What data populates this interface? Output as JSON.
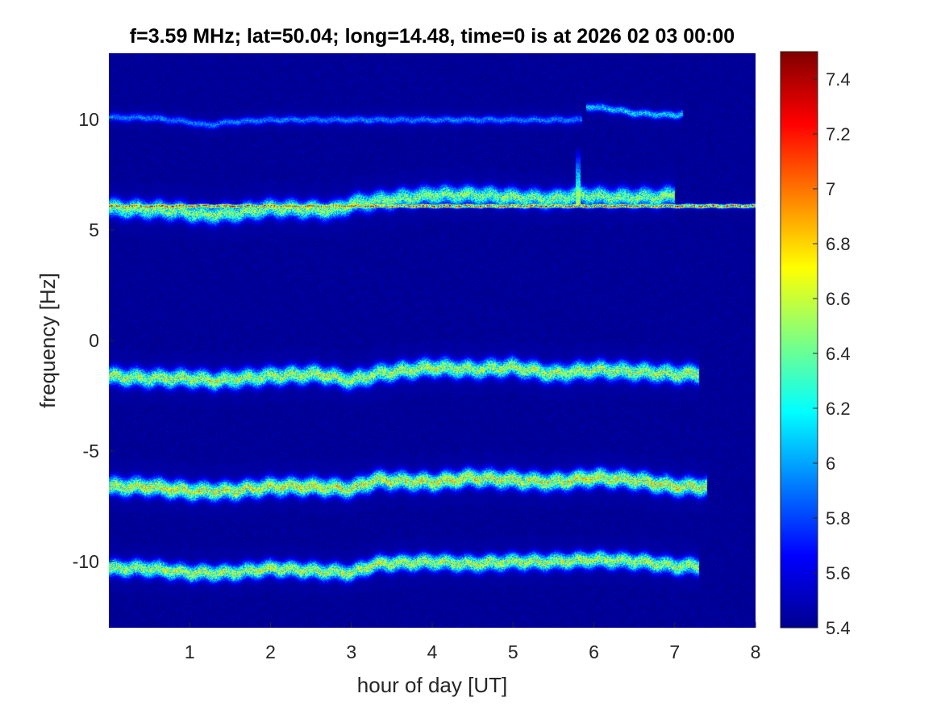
{
  "chart_data": {
    "type": "heatmap",
    "title": "f=3.59 MHz;  lat=50.04; long=14.48, time=0 is at 2026 02 03 00:00",
    "xlabel": "hour of day [UT]",
    "ylabel": "frequency [Hz]",
    "xlim": [
      0,
      8
    ],
    "ylim": [
      -13,
      13
    ],
    "xticks": [
      1,
      2,
      3,
      4,
      5,
      6,
      7,
      8
    ],
    "yticks": [
      10,
      5,
      0,
      -5,
      -10
    ],
    "colorbar": {
      "colormap": "jet",
      "range": [
        5.4,
        7.5
      ],
      "ticks": [
        7.4,
        7.2,
        7,
        6.8,
        6.6,
        6.4,
        6.2,
        6,
        5.8,
        5.6,
        5.4
      ]
    },
    "background_value": 5.45,
    "traces": [
      {
        "center": [
          [
            0,
            10.1
          ],
          [
            0.5,
            10.1
          ],
          [
            1,
            9.9
          ],
          [
            1.2,
            9.75
          ],
          [
            1.5,
            9.9
          ],
          [
            2,
            10.0
          ],
          [
            3,
            10.0
          ],
          [
            4,
            10.0
          ],
          [
            5,
            10.0
          ],
          [
            5.5,
            10.0
          ],
          [
            5.85,
            10.0
          ]
        ],
        "width": 0.25,
        "intensity": 6.0
      },
      {
        "center": [
          [
            5.9,
            10.6
          ],
          [
            6.2,
            10.5
          ],
          [
            6.5,
            10.3
          ],
          [
            7.0,
            10.2
          ],
          [
            7.1,
            10.3
          ]
        ],
        "width": 0.25,
        "intensity": 6.2
      },
      {
        "center": [
          [
            0,
            6.1
          ],
          [
            8,
            6.1
          ]
        ],
        "width": 0.12,
        "intensity": 7.3
      },
      {
        "center": [
          [
            0,
            6.0
          ],
          [
            0.8,
            5.9
          ],
          [
            1.2,
            5.7
          ],
          [
            1.6,
            5.8
          ],
          [
            2,
            6.0
          ],
          [
            2.8,
            5.9
          ],
          [
            3,
            6.2
          ],
          [
            3.5,
            6.4
          ],
          [
            4,
            6.6
          ],
          [
            4.5,
            6.6
          ],
          [
            5,
            6.5
          ],
          [
            5.5,
            6.4
          ],
          [
            5.8,
            6.6
          ],
          [
            6.2,
            6.5
          ],
          [
            6.8,
            6.5
          ],
          [
            7.0,
            6.6
          ]
        ],
        "width": 0.55,
        "intensity": 6.6
      },
      {
        "center": [
          [
            0,
            -1.6
          ],
          [
            0.5,
            -1.7
          ],
          [
            1,
            -1.7
          ],
          [
            1.3,
            -1.8
          ],
          [
            2,
            -1.6
          ],
          [
            2.6,
            -1.5
          ],
          [
            3,
            -1.8
          ],
          [
            3.3,
            -1.5
          ],
          [
            4,
            -1.2
          ],
          [
            4.5,
            -1.3
          ],
          [
            5,
            -1.2
          ],
          [
            5.5,
            -1.5
          ],
          [
            6,
            -1.3
          ],
          [
            6.5,
            -1.4
          ],
          [
            7,
            -1.5
          ],
          [
            7.3,
            -1.5
          ]
        ],
        "width": 0.55,
        "intensity": 6.7
      },
      {
        "center": [
          [
            0,
            -6.6
          ],
          [
            0.5,
            -6.6
          ],
          [
            1,
            -6.8
          ],
          [
            1.5,
            -6.8
          ],
          [
            2,
            -6.6
          ],
          [
            2.5,
            -6.6
          ],
          [
            3,
            -6.7
          ],
          [
            3.3,
            -6.3
          ],
          [
            4,
            -6.4
          ],
          [
            4.5,
            -6.2
          ],
          [
            5,
            -6.3
          ],
          [
            5.5,
            -6.4
          ],
          [
            6,
            -6.2
          ],
          [
            6.5,
            -6.3
          ],
          [
            7,
            -6.6
          ],
          [
            7.4,
            -6.6
          ]
        ],
        "width": 0.55,
        "intensity": 6.8
      },
      {
        "center": [
          [
            0,
            -10.3
          ],
          [
            0.5,
            -10.3
          ],
          [
            1.0,
            -10.5
          ],
          [
            1.5,
            -10.5
          ],
          [
            2,
            -10.3
          ],
          [
            2.5,
            -10.4
          ],
          [
            3,
            -10.5
          ],
          [
            3.3,
            -10.1
          ],
          [
            4,
            -10.0
          ],
          [
            4.5,
            -10.1
          ],
          [
            5,
            -10.0
          ],
          [
            5.5,
            -10.0
          ],
          [
            6,
            -9.9
          ],
          [
            6.6,
            -10.0
          ],
          [
            7.0,
            -10.2
          ],
          [
            7.3,
            -10.2
          ]
        ],
        "width": 0.5,
        "intensity": 6.7
      }
    ],
    "spike": {
      "x": 5.8,
      "y_from": 6.2,
      "y_to": 8.8,
      "intensity": 6.9
    }
  }
}
